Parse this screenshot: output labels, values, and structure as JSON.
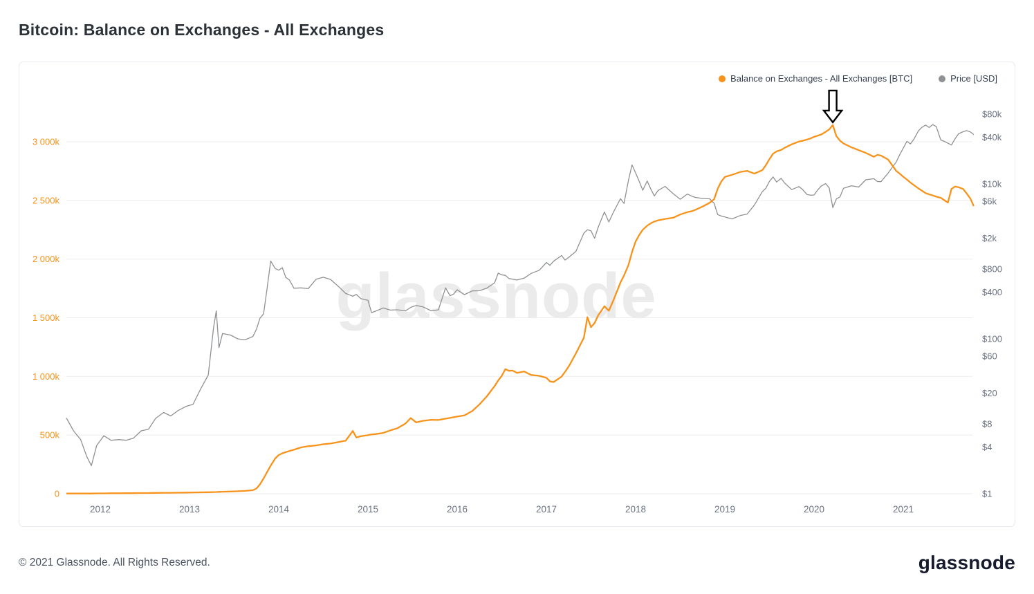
{
  "page": {
    "title": "Bitcoin: Balance on Exchanges - All Exchanges",
    "watermark": "glassnode",
    "footer_copyright": "© 2021 Glassnode. All Rights Reserved.",
    "brand": "glassnode"
  },
  "legend": [
    {
      "label": "Balance on Exchanges - All Exchanges [BTC]",
      "color": "#f7931a"
    },
    {
      "label": "Price [USD]",
      "color": "#8e9194"
    }
  ],
  "chart_data": {
    "type": "line",
    "title": "Bitcoin: Balance on Exchanges - All Exchanges",
    "grid": "horizontal",
    "legend_position": "top-right",
    "x_unit": "decimal_year",
    "x_range": [
      2011.62,
      2021.79
    ],
    "x_ticks": [
      2012,
      2013,
      2014,
      2015,
      2016,
      2017,
      2018,
      2019,
      2020,
      2021
    ],
    "left_axis": {
      "label": "Balance on Exchanges - All Exchanges [BTC]",
      "unit": "thousand BTC",
      "scale": "linear",
      "color": "#f7931a",
      "ticks": [
        "0",
        "500k",
        "1 000k",
        "1 500k",
        "2 000k",
        "2 500k",
        "3 000k"
      ],
      "tick_values_k": [
        0,
        500,
        1000,
        1500,
        2000,
        2500,
        3000
      ],
      "ylim_k": [
        -60,
        3430
      ]
    },
    "right_axis": {
      "label": "Price [USD]",
      "unit": "USD",
      "scale": "log",
      "color": "#8e9194",
      "ticks": [
        "$80k",
        "$40k",
        "$10k",
        "$6k",
        "$2k",
        "$800",
        "$400",
        "$100",
        "$60",
        "$20",
        "$8",
        "$4",
        "$1"
      ],
      "tick_values": [
        80000,
        40000,
        10000,
        6000,
        2000,
        800,
        400,
        100,
        60,
        20,
        8,
        4,
        1
      ],
      "ylim": [
        0.75,
        155000
      ]
    },
    "x": [
      2011.62,
      2011.7,
      2011.78,
      2011.85,
      2011.9,
      2011.96,
      2012.04,
      2012.12,
      2012.21,
      2012.29,
      2012.37,
      2012.46,
      2012.54,
      2012.62,
      2012.71,
      2012.79,
      2012.87,
      2012.96,
      2013.04,
      2013.12,
      2013.21,
      2013.27,
      2013.3,
      2013.33,
      2013.37,
      2013.46,
      2013.54,
      2013.62,
      2013.71,
      2013.75,
      2013.79,
      2013.83,
      2013.87,
      2013.91,
      2013.96,
      2014.0,
      2014.04,
      2014.08,
      2014.12,
      2014.17,
      2014.25,
      2014.33,
      2014.42,
      2014.5,
      2014.58,
      2014.67,
      2014.75,
      2014.83,
      2014.87,
      2014.92,
      2015.0,
      2015.04,
      2015.08,
      2015.17,
      2015.25,
      2015.33,
      2015.42,
      2015.48,
      2015.54,
      2015.62,
      2015.71,
      2015.79,
      2015.87,
      2015.92,
      2015.96,
      2016.0,
      2016.08,
      2016.17,
      2016.25,
      2016.33,
      2016.42,
      2016.46,
      2016.5,
      2016.54,
      2016.58,
      2016.62,
      2016.67,
      2016.75,
      2016.83,
      2016.92,
      2017.0,
      2017.04,
      2017.08,
      2017.17,
      2017.21,
      2017.25,
      2017.33,
      2017.42,
      2017.46,
      2017.5,
      2017.54,
      2017.58,
      2017.65,
      2017.7,
      2017.75,
      2017.83,
      2017.87,
      2017.92,
      2017.96,
      2018.0,
      2018.04,
      2018.08,
      2018.13,
      2018.17,
      2018.21,
      2018.25,
      2018.33,
      2018.42,
      2018.5,
      2018.58,
      2018.63,
      2018.67,
      2018.75,
      2018.83,
      2018.88,
      2018.92,
      2018.96,
      2019.0,
      2019.08,
      2019.17,
      2019.25,
      2019.33,
      2019.42,
      2019.46,
      2019.5,
      2019.54,
      2019.58,
      2019.63,
      2019.67,
      2019.75,
      2019.83,
      2019.87,
      2019.92,
      2019.96,
      2020.0,
      2020.04,
      2020.08,
      2020.13,
      2020.17,
      2020.21,
      2020.25,
      2020.29,
      2020.33,
      2020.42,
      2020.5,
      2020.58,
      2020.67,
      2020.71,
      2020.75,
      2020.83,
      2020.92,
      2020.96,
      2021.0,
      2021.04,
      2021.08,
      2021.12,
      2021.17,
      2021.21,
      2021.25,
      2021.29,
      2021.33,
      2021.37,
      2021.42,
      2021.46,
      2021.5,
      2021.54,
      2021.58,
      2021.62,
      2021.67,
      2021.71,
      2021.75,
      2021.79
    ],
    "series": [
      {
        "name": "Balance on Exchanges - All Exchanges [BTC]",
        "axis": "left",
        "color": "#f7931a",
        "unit": "thousand BTC",
        "values": [
          2,
          2,
          2,
          2,
          2,
          3,
          3,
          4,
          4,
          5,
          5,
          6,
          6,
          7,
          8,
          8,
          9,
          10,
          11,
          12,
          13,
          14,
          15,
          16,
          17,
          19,
          21,
          24,
          30,
          45,
          80,
          130,
          185,
          240,
          300,
          330,
          345,
          355,
          365,
          375,
          395,
          405,
          412,
          422,
          428,
          440,
          452,
          535,
          480,
          490,
          500,
          505,
          508,
          518,
          540,
          558,
          598,
          645,
          608,
          622,
          630,
          628,
          640,
          646,
          652,
          658,
          668,
          705,
          762,
          828,
          918,
          965,
          1005,
          1062,
          1048,
          1050,
          1030,
          1042,
          1012,
          1005,
          988,
          958,
          952,
          998,
          1040,
          1085,
          1195,
          1330,
          1505,
          1420,
          1455,
          1520,
          1598,
          1560,
          1648,
          1800,
          1860,
          1950,
          2060,
          2150,
          2205,
          2250,
          2285,
          2305,
          2320,
          2330,
          2342,
          2352,
          2380,
          2400,
          2408,
          2420,
          2448,
          2480,
          2510,
          2600,
          2660,
          2700,
          2718,
          2742,
          2752,
          2728,
          2758,
          2800,
          2852,
          2898,
          2918,
          2930,
          2948,
          2978,
          3002,
          3008,
          3018,
          3028,
          3042,
          3052,
          3062,
          3085,
          3105,
          3142,
          3048,
          3010,
          2985,
          2952,
          2928,
          2905,
          2872,
          2888,
          2882,
          2848,
          2752,
          2728,
          2702,
          2678,
          2652,
          2630,
          2602,
          2582,
          2562,
          2552,
          2542,
          2532,
          2522,
          2502,
          2482,
          2598,
          2618,
          2612,
          2598,
          2560,
          2518,
          2452
        ]
      },
      {
        "name": "Price [USD]",
        "axis": "right",
        "color": "#8e9194",
        "unit": "USD",
        "values": [
          9.5,
          6.5,
          5,
          3,
          2.3,
          4.2,
          5.6,
          4.9,
          5,
          4.9,
          5.2,
          6.5,
          6.8,
          9.4,
          11.2,
          10.1,
          11.8,
          13.4,
          14.3,
          22,
          34,
          140,
          230,
          77,
          117,
          112,
          100,
          97,
          107,
          133,
          185,
          210,
          450,
          1010,
          810,
          770,
          830,
          620,
          575,
          450,
          455,
          445,
          590,
          625,
          585,
          475,
          385,
          355,
          375,
          330,
          314,
          218,
          226,
          250,
          235,
          237,
          230,
          255,
          270,
          258,
          230,
          237,
          455,
          360,
          378,
          430,
          372,
          416,
          418,
          450,
          530,
          705,
          670,
          660,
          600,
          590,
          575,
          608,
          700,
          768,
          965,
          890,
          1005,
          1190,
          1040,
          1130,
          1345,
          2320,
          2560,
          2480,
          1990,
          2750,
          4350,
          3230,
          4300,
          6450,
          5600,
          11200,
          17600,
          13900,
          10800,
          8300,
          10900,
          8600,
          7000,
          8200,
          9300,
          7500,
          6350,
          7400,
          6950,
          6700,
          6500,
          6430,
          5620,
          4020,
          3850,
          3740,
          3530,
          3900,
          4090,
          5320,
          7950,
          8800,
          10800,
          12300,
          10600,
          11800,
          10300,
          8450,
          9250,
          8500,
          7320,
          7150,
          7200,
          8350,
          9380,
          10100,
          8900,
          4940,
          6420,
          6800,
          8780,
          9480,
          9120,
          11320,
          11680,
          10750,
          10700,
          13800,
          19150,
          23800,
          29000,
          35500,
          32900,
          38000,
          48500,
          54000,
          57500,
          53500,
          58300,
          55000,
          37000,
          35500,
          33600,
          31800,
          38200,
          44500,
          47200,
          48800,
          47100,
          43400
        ]
      }
    ],
    "annotation": {
      "shape": "down-arrow-outline",
      "x": 2020.21,
      "balance_k": 3142,
      "points_at": "peak of orange balance series"
    }
  }
}
